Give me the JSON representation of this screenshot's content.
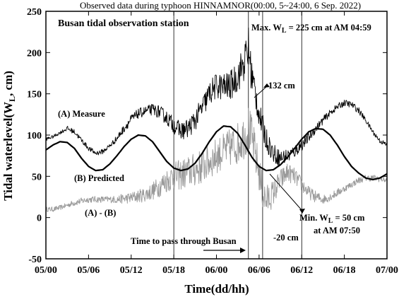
{
  "chart_data": {
    "type": "line",
    "title": "Observed data during typhoon HINNAMNOR(00:00, 5~24:00, 6  Sep. 2022)",
    "station": "Busan tidal observation station",
    "xlabel": "Time(dd/hh)",
    "ylabel_main": "Tidal waterlevel(W",
    "ylabel_sub": "L",
    "ylabel_tail": ", cm)",
    "x_hours_range": [
      0,
      48
    ],
    "ylim": [
      -50,
      250
    ],
    "xticks": [
      {
        "hour": 0,
        "label": "05/00"
      },
      {
        "hour": 6,
        "label": "05/06"
      },
      {
        "hour": 12,
        "label": "05/12"
      },
      {
        "hour": 18,
        "label": "05/18"
      },
      {
        "hour": 24,
        "label": "06/00"
      },
      {
        "hour": 30,
        "label": "06/06"
      },
      {
        "hour": 36,
        "label": "06/12"
      },
      {
        "hour": 42,
        "label": "06/18"
      },
      {
        "hour": 48,
        "label": "07/00"
      }
    ],
    "yticks": [
      -50,
      0,
      50,
      100,
      150,
      200,
      250
    ],
    "vertical_lines_hours": [
      18,
      28.5,
      30.5,
      36
    ],
    "series": [
      {
        "name": "(A) Measure",
        "color": "#000000",
        "x_hours": [
          0,
          1,
          2,
          3,
          4,
          5,
          6,
          7,
          8,
          9,
          10,
          11,
          12,
          13,
          14,
          15,
          16,
          17,
          18,
          19,
          20,
          21,
          22,
          23,
          24,
          25,
          26,
          27,
          28,
          28.5,
          29,
          29.5,
          30,
          31,
          32,
          33,
          34,
          35,
          36,
          37,
          38,
          39,
          40,
          41,
          42,
          43,
          44,
          45,
          46,
          47,
          48
        ],
        "values": [
          95,
          98,
          103,
          108,
          104,
          94,
          84,
          78,
          80,
          87,
          96,
          108,
          119,
          126,
          129,
          131,
          128,
          121,
          112,
          105,
          108,
          118,
          133,
          150,
          160,
          158,
          160,
          172,
          190,
          205,
          170,
          150,
          125,
          95,
          78,
          72,
          75,
          80,
          88,
          97,
          108,
          118,
          127,
          134,
          139,
          137,
          130,
          118,
          104,
          93,
          88
        ],
        "noise": [
          2,
          2,
          2,
          3,
          3,
          3,
          3,
          3,
          3,
          3,
          4,
          5,
          6,
          6,
          6,
          7,
          8,
          9,
          10,
          11,
          12,
          13,
          14,
          15,
          16,
          17,
          18,
          20,
          24,
          28,
          24,
          20,
          16,
          14,
          12,
          10,
          9,
          8,
          7,
          6,
          5,
          5,
          4,
          4,
          4,
          4,
          4,
          3,
          3,
          3,
          3
        ]
      },
      {
        "name": "(B) Predicted",
        "color": "#000000",
        "x_hours": [
          0,
          1,
          2,
          3,
          4,
          5,
          6,
          7,
          8,
          9,
          10,
          11,
          12,
          13,
          14,
          15,
          16,
          17,
          18,
          19,
          20,
          21,
          22,
          23,
          24,
          25,
          26,
          27,
          28,
          29,
          30,
          31,
          32,
          33,
          34,
          35,
          36,
          37,
          38,
          39,
          40,
          41,
          42,
          43,
          44,
          45,
          46,
          47,
          48
        ],
        "values": [
          82,
          88,
          92,
          91,
          84,
          72,
          62,
          57,
          58,
          65,
          75,
          86,
          95,
          100,
          99,
          92,
          80,
          68,
          60,
          57,
          59,
          66,
          78,
          92,
          104,
          111,
          110,
          102,
          88,
          73,
          62,
          57,
          58,
          64,
          73,
          84,
          95,
          104,
          108,
          107,
          100,
          88,
          74,
          62,
          54,
          48,
          46,
          48,
          53
        ]
      },
      {
        "name": "(A) - (B)",
        "color": "#999999",
        "x_hours": [
          0,
          1,
          2,
          3,
          4,
          5,
          6,
          7,
          8,
          9,
          10,
          11,
          12,
          13,
          14,
          15,
          16,
          17,
          18,
          19,
          20,
          21,
          22,
          23,
          24,
          25,
          26,
          27,
          28,
          28.5,
          29,
          29.5,
          30,
          30.5,
          31,
          31.5,
          32,
          33,
          34,
          35,
          36,
          37,
          38,
          39,
          40,
          41,
          42,
          43,
          44,
          45,
          46,
          47,
          48
        ],
        "values": [
          10,
          10,
          12,
          15,
          18,
          20,
          22,
          22,
          22,
          22,
          22,
          23,
          24,
          26,
          28,
          32,
          38,
          45,
          50,
          52,
          55,
          58,
          62,
          68,
          75,
          80,
          85,
          90,
          100,
          108,
          95,
          75,
          55,
          30,
          20,
          25,
          30,
          45,
          55,
          50,
          40,
          30,
          25,
          22,
          25,
          30,
          35,
          40,
          45,
          48,
          48,
          47,
          45
        ],
        "noise": [
          3,
          3,
          3,
          3,
          4,
          4,
          4,
          4,
          4,
          4,
          5,
          6,
          7,
          8,
          9,
          11,
          13,
          15,
          17,
          19,
          20,
          21,
          22,
          22,
          22,
          22,
          24,
          26,
          28,
          30,
          28,
          26,
          24,
          22,
          20,
          18,
          16,
          14,
          12,
          10,
          9,
          8,
          7,
          6,
          5,
          5,
          4,
          4,
          4,
          4,
          4,
          4,
          3
        ]
      }
    ],
    "annotations": {
      "max_text": "Max. W",
      "max_sub": "L",
      "max_tail": " = 225 cm at AM 04:59",
      "peak_132": "132 cm",
      "min_text": "Min. W",
      "min_sub": "L",
      "min_tail": " = 50 cm",
      "min_time": "at AM 07:50",
      "neg20": "-20 cm",
      "measure_label": "(A) Measure",
      "predicted_label": "(B) Predicted",
      "diff_label": "(A) - (B)",
      "pass_label": "Time to pass through Busan"
    }
  }
}
